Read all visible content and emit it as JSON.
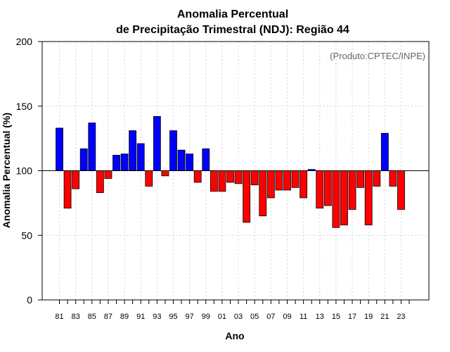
{
  "chart_data": {
    "type": "bar",
    "title": [
      "Anomalia Percentual",
      "de Precipitação Trimestral (NDJ): Região 44"
    ],
    "xlabel": "Ano",
    "ylabel": "Anomalia Percentual (%)",
    "credit": "(Produto:CPTEC/INPE)",
    "ylim": [
      0,
      200
    ],
    "yticks": [
      "0",
      "50",
      "100",
      "150",
      "200"
    ],
    "baseline": 100,
    "grid": true,
    "x_tick_labels": [
      "81",
      "83",
      "85",
      "87",
      "89",
      "91",
      "93",
      "95",
      "97",
      "99",
      "01",
      "03",
      "05",
      "07",
      "09",
      "11",
      "13",
      "15",
      "17",
      "19",
      "21",
      "23"
    ],
    "categories": [
      "81",
      "82",
      "83",
      "84",
      "85",
      "86",
      "87",
      "88",
      "89",
      "90",
      "91",
      "92",
      "93",
      "94",
      "95",
      "96",
      "97",
      "98",
      "99",
      "00",
      "01",
      "02",
      "03",
      "04",
      "05",
      "06",
      "07",
      "08",
      "09",
      "10",
      "11",
      "12",
      "13",
      "14",
      "15",
      "16",
      "17",
      "18",
      "19",
      "20",
      "21",
      "22",
      "23"
    ],
    "values": [
      133,
      71,
      86,
      117,
      137,
      83,
      94,
      112,
      113,
      131,
      121,
      88,
      142,
      96,
      131,
      116,
      113,
      91,
      117,
      84,
      84,
      91,
      90,
      60,
      89,
      65,
      79,
      85,
      85,
      87,
      79,
      101,
      71,
      73,
      56,
      58,
      70,
      87,
      58,
      88,
      129,
      88,
      70
    ],
    "colors": {
      "above": "#0000ff",
      "below": "#ff0000",
      "axis": "#000000",
      "grid": "#d3d3d3"
    }
  }
}
